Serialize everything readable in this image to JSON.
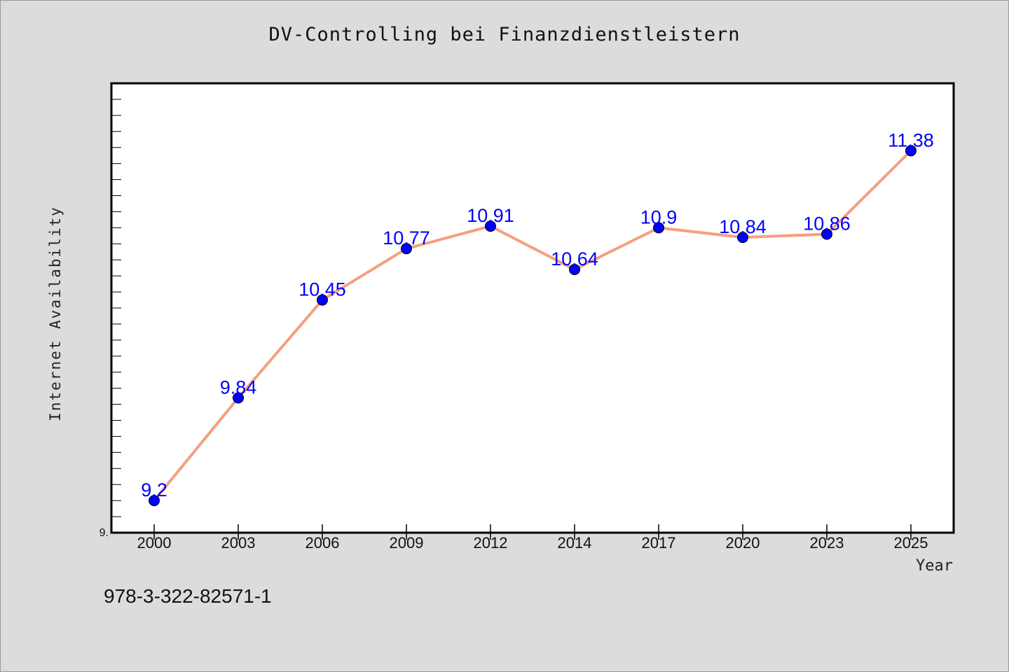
{
  "chart_data": {
    "type": "line",
    "title": "DV-Controlling bei Finanzdienstleistern",
    "xlabel": "Year",
    "ylabel": "Internet Availability",
    "categories": [
      "2000",
      "2003",
      "2006",
      "2009",
      "2012",
      "2014",
      "2017",
      "2020",
      "2023",
      "2025"
    ],
    "series": [
      {
        "values": [
          9.2,
          9.84,
          10.45,
          10.77,
          10.91,
          10.64,
          10.9,
          10.84,
          10.86,
          11.38
        ]
      }
    ],
    "data_labels": [
      "9.2",
      "9.84",
      "10.45",
      "10.77",
      "10.91",
      "10.64",
      "10.9",
      "10.84",
      "10.86",
      "11.38"
    ],
    "y_tick_label": "9.",
    "ylim": [
      9.0,
      11.8
    ],
    "grid": false,
    "colors": {
      "line": "#f4a07e",
      "marker": "#0000ff",
      "label": "#0000ff",
      "background": "#dcdcdc",
      "plot_background": "#ffffff"
    }
  },
  "footer": {
    "isbn": "978-3-322-82571-1"
  }
}
